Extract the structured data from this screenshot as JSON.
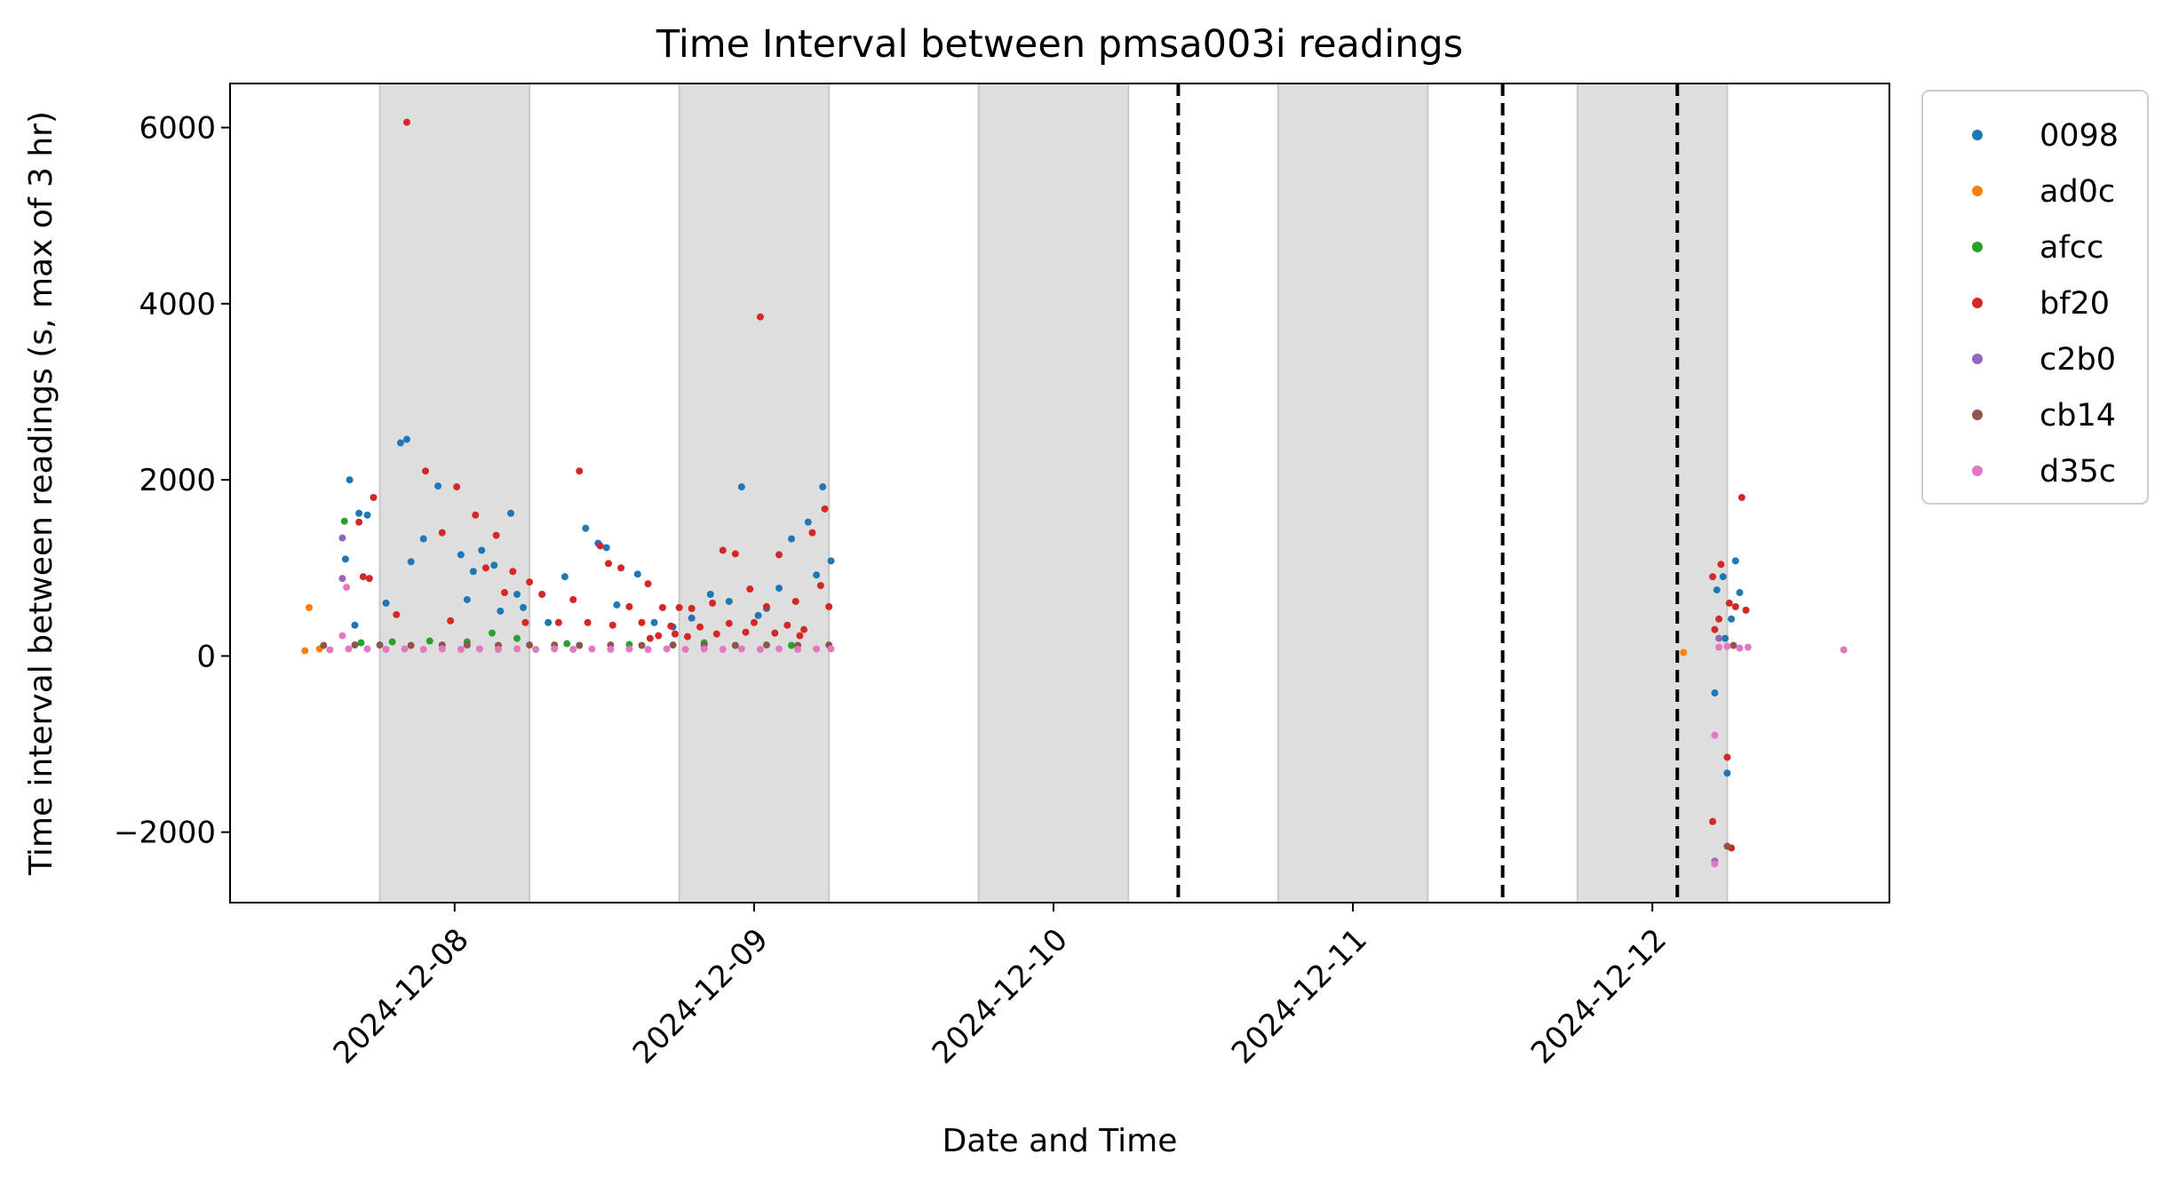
{
  "chart_data": {
    "type": "scatter",
    "title": "Time Interval between pmsa003i readings",
    "xlabel": "Date and Time",
    "ylabel": "Time interval between readings (s, max of 3 hr)",
    "x_ticks": [
      "2024-12-08",
      "2024-12-09",
      "2024-12-10",
      "2024-12-11",
      "2024-12-12"
    ],
    "y_ticks": [
      -2000,
      0,
      2000,
      4000,
      6000
    ],
    "xlim": [
      "2024-12-07T06:00",
      "2024-12-12T19:00"
    ],
    "ylim": [
      -2800,
      6500
    ],
    "grid": false,
    "legend_position": "outside-right",
    "night_shading": [
      [
        "2024-12-07T18:00",
        "2024-12-08T06:00"
      ],
      [
        "2024-12-08T18:00",
        "2024-12-09T06:00"
      ],
      [
        "2024-12-09T18:00",
        "2024-12-10T06:00"
      ],
      [
        "2024-12-10T18:00",
        "2024-12-11T06:00"
      ],
      [
        "2024-12-11T18:00",
        "2024-12-12T06:00"
      ]
    ],
    "vlines": [
      "2024-12-10T10:00",
      "2024-12-11T12:00",
      "2024-12-12T02:00"
    ],
    "series": [
      {
        "name": "0098",
        "color": "#1f77b4",
        "points": [
          [
            "2024-12-07T15:15",
            1100
          ],
          [
            "2024-12-07T15:35",
            2000
          ],
          [
            "2024-12-07T16:20",
            1620
          ],
          [
            "2024-12-07T17:00",
            1600
          ],
          [
            "2024-12-07T16:00",
            350
          ],
          [
            "2024-12-07T19:40",
            2420
          ],
          [
            "2024-12-07T20:10",
            2460
          ],
          [
            "2024-12-07T22:40",
            1930
          ],
          [
            "2024-12-07T21:30",
            1330
          ],
          [
            "2024-12-07T20:30",
            1070
          ],
          [
            "2024-12-08T00:30",
            1150
          ],
          [
            "2024-12-08T01:30",
            960
          ],
          [
            "2024-12-08T02:10",
            1200
          ],
          [
            "2024-12-08T03:10",
            1030
          ],
          [
            "2024-12-08T04:30",
            1620
          ],
          [
            "2024-12-08T05:30",
            550
          ],
          [
            "2024-12-07T18:30",
            600
          ],
          [
            "2024-12-08T01:00",
            640
          ],
          [
            "2024-12-08T03:40",
            510
          ],
          [
            "2024-12-08T05:00",
            700
          ],
          [
            "2024-12-08T07:30",
            380
          ],
          [
            "2024-12-08T08:50",
            900
          ],
          [
            "2024-12-08T10:30",
            1450
          ],
          [
            "2024-12-08T11:30",
            1280
          ],
          [
            "2024-12-08T12:10",
            1230
          ],
          [
            "2024-12-08T13:00",
            580
          ],
          [
            "2024-12-08T14:40",
            930
          ],
          [
            "2024-12-08T16:00",
            380
          ],
          [
            "2024-12-08T17:30",
            330
          ],
          [
            "2024-12-08T19:00",
            430
          ],
          [
            "2024-12-08T20:30",
            700
          ],
          [
            "2024-12-08T22:00",
            620
          ],
          [
            "2024-12-08T23:00",
            1920
          ],
          [
            "2024-12-09T00:20",
            460
          ],
          [
            "2024-12-09T01:00",
            540
          ],
          [
            "2024-12-09T02:00",
            770
          ],
          [
            "2024-12-09T03:00",
            1330
          ],
          [
            "2024-12-09T04:20",
            1520
          ],
          [
            "2024-12-09T05:00",
            920
          ],
          [
            "2024-12-09T05:30",
            1920
          ],
          [
            "2024-12-09T06:10",
            1080
          ],
          [
            "2024-12-12T05:10",
            750
          ],
          [
            "2024-12-12T05:40",
            900
          ],
          [
            "2024-12-12T06:40",
            1080
          ],
          [
            "2024-12-12T05:00",
            -420
          ],
          [
            "2024-12-12T06:00",
            -1330
          ],
          [
            "2024-12-12T07:00",
            720
          ],
          [
            "2024-12-12T05:50",
            200
          ],
          [
            "2024-12-12T06:20",
            420
          ]
        ]
      },
      {
        "name": "ad0c",
        "color": "#ff7f0e",
        "points": [
          [
            "2024-12-07T12:20",
            550
          ],
          [
            "2024-12-07T12:00",
            60
          ],
          [
            "2024-12-07T13:10",
            80
          ],
          [
            "2024-12-12T02:30",
            40
          ]
        ]
      },
      {
        "name": "afcc",
        "color": "#2ca02c",
        "points": [
          [
            "2024-12-07T15:10",
            1530
          ],
          [
            "2024-12-07T16:30",
            150
          ],
          [
            "2024-12-07T19:00",
            160
          ],
          [
            "2024-12-07T22:00",
            170
          ],
          [
            "2024-12-08T01:00",
            160
          ],
          [
            "2024-12-08T03:00",
            260
          ],
          [
            "2024-12-08T05:00",
            200
          ],
          [
            "2024-12-08T09:00",
            140
          ],
          [
            "2024-12-08T14:00",
            130
          ],
          [
            "2024-12-08T20:00",
            150
          ],
          [
            "2024-12-09T03:00",
            120
          ]
        ]
      },
      {
        "name": "bf20",
        "color": "#d62728",
        "points": [
          [
            "2024-12-07T20:10",
            6060
          ],
          [
            "2024-12-09T00:30",
            3850
          ],
          [
            "2024-12-08T10:00",
            2100
          ],
          [
            "2024-12-07T21:40",
            2100
          ],
          [
            "2024-12-08T00:10",
            1920
          ],
          [
            "2024-12-07T17:30",
            1800
          ],
          [
            "2024-12-07T16:20",
            1520
          ],
          [
            "2024-12-08T01:40",
            1600
          ],
          [
            "2024-12-08T03:20",
            1370
          ],
          [
            "2024-12-07T23:00",
            1400
          ],
          [
            "2024-12-08T11:40",
            1250
          ],
          [
            "2024-12-08T13:20",
            1000
          ],
          [
            "2024-12-08T12:20",
            1050
          ],
          [
            "2024-12-07T16:40",
            900
          ],
          [
            "2024-12-07T17:10",
            880
          ],
          [
            "2024-12-08T02:30",
            1000
          ],
          [
            "2024-12-08T04:40",
            960
          ],
          [
            "2024-12-08T06:00",
            840
          ],
          [
            "2024-12-08T15:30",
            820
          ],
          [
            "2024-12-08T21:30",
            1200
          ],
          [
            "2024-12-08T22:30",
            1160
          ],
          [
            "2024-12-09T02:00",
            1150
          ],
          [
            "2024-12-09T04:40",
            1400
          ],
          [
            "2024-12-09T05:40",
            1670
          ],
          [
            "2024-12-08T07:00",
            700
          ],
          [
            "2024-12-08T09:30",
            640
          ],
          [
            "2024-12-08T14:00",
            560
          ],
          [
            "2024-12-08T16:40",
            550
          ],
          [
            "2024-12-08T18:00",
            550
          ],
          [
            "2024-12-08T19:00",
            540
          ],
          [
            "2024-12-08T20:40",
            600
          ],
          [
            "2024-12-08T23:40",
            760
          ],
          [
            "2024-12-09T01:00",
            560
          ],
          [
            "2024-12-09T03:20",
            620
          ],
          [
            "2024-12-09T05:20",
            800
          ],
          [
            "2024-12-08T04:00",
            720
          ],
          [
            "2024-12-07T19:20",
            470
          ],
          [
            "2024-12-07T23:40",
            400
          ],
          [
            "2024-12-08T05:40",
            380
          ],
          [
            "2024-12-08T08:20",
            380
          ],
          [
            "2024-12-08T10:40",
            380
          ],
          [
            "2024-12-08T12:40",
            350
          ],
          [
            "2024-12-08T15:00",
            380
          ],
          [
            "2024-12-08T17:20",
            340
          ],
          [
            "2024-12-08T19:40",
            330
          ],
          [
            "2024-12-08T22:00",
            370
          ],
          [
            "2024-12-09T00:00",
            380
          ],
          [
            "2024-12-09T02:40",
            350
          ],
          [
            "2024-12-09T04:00",
            300
          ],
          [
            "2024-12-09T06:00",
            560
          ],
          [
            "2024-12-08T15:40",
            200
          ],
          [
            "2024-12-08T16:20",
            230
          ],
          [
            "2024-12-08T17:40",
            250
          ],
          [
            "2024-12-08T18:40",
            220
          ],
          [
            "2024-12-08T21:00",
            250
          ],
          [
            "2024-12-08T23:20",
            270
          ],
          [
            "2024-12-09T01:40",
            260
          ],
          [
            "2024-12-09T03:40",
            230
          ],
          [
            "2024-12-12T04:50",
            900
          ],
          [
            "2024-12-12T05:30",
            1040
          ],
          [
            "2024-12-12T06:10",
            600
          ],
          [
            "2024-12-12T06:40",
            560
          ],
          [
            "2024-12-12T07:10",
            1800
          ],
          [
            "2024-12-12T05:20",
            420
          ],
          [
            "2024-12-12T05:00",
            300
          ],
          [
            "2024-12-12T04:50",
            -1880
          ],
          [
            "2024-12-12T06:00",
            -1150
          ],
          [
            "2024-12-12T06:20",
            -2180
          ],
          [
            "2024-12-12T07:30",
            520
          ]
        ]
      },
      {
        "name": "c2b0",
        "color": "#9467bd",
        "points": [
          [
            "2024-12-07T15:00",
            1340
          ],
          [
            "2024-12-07T15:00",
            880
          ],
          [
            "2024-12-12T05:00",
            -2330
          ],
          [
            "2024-12-12T05:20",
            200
          ]
        ]
      },
      {
        "name": "cb14",
        "color": "#8c564b",
        "points": [
          [
            "2024-12-07T13:30",
            120
          ],
          [
            "2024-12-07T16:00",
            125
          ],
          [
            "2024-12-07T18:00",
            125
          ],
          [
            "2024-12-07T20:30",
            120
          ],
          [
            "2024-12-07T23:00",
            125
          ],
          [
            "2024-12-08T01:00",
            125
          ],
          [
            "2024-12-08T03:30",
            120
          ],
          [
            "2024-12-08T06:00",
            125
          ],
          [
            "2024-12-08T08:00",
            125
          ],
          [
            "2024-12-08T10:00",
            120
          ],
          [
            "2024-12-08T12:30",
            125
          ],
          [
            "2024-12-08T15:00",
            120
          ],
          [
            "2024-12-08T17:30",
            125
          ],
          [
            "2024-12-08T20:00",
            125
          ],
          [
            "2024-12-08T22:30",
            120
          ],
          [
            "2024-12-09T01:00",
            125
          ],
          [
            "2024-12-09T03:30",
            120
          ],
          [
            "2024-12-09T06:00",
            125
          ],
          [
            "2024-12-12T06:00",
            -2160
          ],
          [
            "2024-12-12T06:30",
            120
          ]
        ]
      },
      {
        "name": "d35c",
        "color": "#e377c2",
        "points": [
          [
            "2024-12-07T15:20",
            780
          ],
          [
            "2024-12-07T15:00",
            230
          ],
          [
            "2024-12-07T14:00",
            70
          ],
          [
            "2024-12-07T15:30",
            80
          ],
          [
            "2024-12-07T17:00",
            80
          ],
          [
            "2024-12-07T18:30",
            75
          ],
          [
            "2024-12-07T20:00",
            80
          ],
          [
            "2024-12-07T21:30",
            75
          ],
          [
            "2024-12-07T23:00",
            80
          ],
          [
            "2024-12-08T00:30",
            75
          ],
          [
            "2024-12-08T02:00",
            80
          ],
          [
            "2024-12-08T03:30",
            75
          ],
          [
            "2024-12-08T05:00",
            80
          ],
          [
            "2024-12-08T06:30",
            75
          ],
          [
            "2024-12-08T08:00",
            80
          ],
          [
            "2024-12-08T09:30",
            75
          ],
          [
            "2024-12-08T11:00",
            80
          ],
          [
            "2024-12-08T12:30",
            75
          ],
          [
            "2024-12-08T14:00",
            80
          ],
          [
            "2024-12-08T15:30",
            75
          ],
          [
            "2024-12-08T17:00",
            80
          ],
          [
            "2024-12-08T18:30",
            75
          ],
          [
            "2024-12-08T20:00",
            80
          ],
          [
            "2024-12-08T21:30",
            75
          ],
          [
            "2024-12-08T23:00",
            80
          ],
          [
            "2024-12-09T00:30",
            75
          ],
          [
            "2024-12-09T02:00",
            80
          ],
          [
            "2024-12-09T03:30",
            75
          ],
          [
            "2024-12-09T05:00",
            80
          ],
          [
            "2024-12-09T06:10",
            80
          ],
          [
            "2024-12-12T05:00",
            -900
          ],
          [
            "2024-12-12T05:00",
            -2360
          ],
          [
            "2024-12-12T05:20",
            100
          ],
          [
            "2024-12-12T06:00",
            110
          ],
          [
            "2024-12-12T07:00",
            90
          ],
          [
            "2024-12-12T07:40",
            100
          ],
          [
            "2024-12-12T15:20",
            70
          ]
        ]
      }
    ]
  }
}
